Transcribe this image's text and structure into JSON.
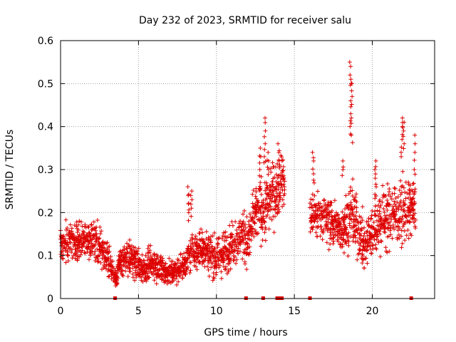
{
  "chart_data": {
    "type": "scatter",
    "title": "Day 232 of 2023, SRMTID for receiver salu",
    "xlabel": "GPS time / hours",
    "ylabel": "SRMTID / TECUs",
    "xlim": [
      0,
      24
    ],
    "ylim": [
      0,
      0.6
    ],
    "x_ticks": [
      "0",
      "5",
      "10",
      "15",
      "20"
    ],
    "y_ticks": [
      "0",
      "0.1",
      "0.2",
      "0.3",
      "0.4",
      "0.5",
      "0.6"
    ],
    "grid": true,
    "marker": "+",
    "series_color": "#dd0000",
    "trend": [
      {
        "x": 0.0,
        "y": 0.13,
        "s": 0.03
      },
      {
        "x": 1.0,
        "y": 0.13,
        "s": 0.03
      },
      {
        "x": 2.0,
        "y": 0.14,
        "s": 0.03
      },
      {
        "x": 2.8,
        "y": 0.11,
        "s": 0.03
      },
      {
        "x": 3.4,
        "y": 0.06,
        "s": 0.015
      },
      {
        "x": 3.6,
        "y": 0.04,
        "s": 0.01
      },
      {
        "x": 3.7,
        "y": 0.08,
        "s": 0.02
      },
      {
        "x": 4.5,
        "y": 0.1,
        "s": 0.03
      },
      {
        "x": 5.2,
        "y": 0.07,
        "s": 0.025
      },
      {
        "x": 6.0,
        "y": 0.08,
        "s": 0.025
      },
      {
        "x": 7.0,
        "y": 0.06,
        "s": 0.02
      },
      {
        "x": 7.8,
        "y": 0.07,
        "s": 0.02
      },
      {
        "x": 8.5,
        "y": 0.11,
        "s": 0.03
      },
      {
        "x": 9.3,
        "y": 0.12,
        "s": 0.03
      },
      {
        "x": 10.0,
        "y": 0.09,
        "s": 0.03
      },
      {
        "x": 10.8,
        "y": 0.12,
        "s": 0.035
      },
      {
        "x": 11.8,
        "y": 0.15,
        "s": 0.04
      },
      {
        "x": 12.0,
        "y": 0.13,
        "s": 0.04
      },
      {
        "x": 12.5,
        "y": 0.2,
        "s": 0.04
      },
      {
        "x": 13.0,
        "y": 0.21,
        "s": 0.05
      },
      {
        "x": 13.6,
        "y": 0.24,
        "s": 0.05
      },
      {
        "x": 14.3,
        "y": 0.28,
        "s": 0.04
      },
      {
        "x": 14.4,
        "y": 0.24,
        "s": 0.04
      }
    ],
    "trend_2": [
      {
        "x": 16.0,
        "y": 0.19,
        "s": 0.04
      },
      {
        "x": 17.0,
        "y": 0.19,
        "s": 0.04
      },
      {
        "x": 18.0,
        "y": 0.16,
        "s": 0.04
      },
      {
        "x": 18.7,
        "y": 0.2,
        "s": 0.05
      },
      {
        "x": 19.5,
        "y": 0.12,
        "s": 0.04
      },
      {
        "x": 20.3,
        "y": 0.18,
        "s": 0.05
      },
      {
        "x": 21.0,
        "y": 0.19,
        "s": 0.05
      },
      {
        "x": 22.0,
        "y": 0.2,
        "s": 0.05
      },
      {
        "x": 22.8,
        "y": 0.22,
        "s": 0.04
      }
    ],
    "spikes": [
      {
        "x": 8.2,
        "ys": [
          0.2,
          0.22,
          0.24,
          0.26
        ]
      },
      {
        "x": 8.4,
        "ys": [
          0.21,
          0.23,
          0.25
        ]
      },
      {
        "x": 12.8,
        "ys": [
          0.27,
          0.3,
          0.33,
          0.35
        ]
      },
      {
        "x": 13.1,
        "ys": [
          0.33,
          0.36,
          0.39,
          0.42
        ]
      },
      {
        "x": 13.3,
        "ys": [
          0.3,
          0.32,
          0.34
        ]
      },
      {
        "x": 14.0,
        "ys": [
          0.32,
          0.34,
          0.36
        ]
      },
      {
        "x": 16.2,
        "ys": [
          0.29,
          0.32,
          0.34
        ]
      },
      {
        "x": 18.1,
        "ys": [
          0.3,
          0.32
        ]
      },
      {
        "x": 18.6,
        "ys": [
          0.4,
          0.43,
          0.46,
          0.51,
          0.52,
          0.55
        ]
      },
      {
        "x": 18.7,
        "ys": [
          0.38,
          0.42,
          0.47,
          0.5
        ]
      },
      {
        "x": 20.2,
        "ys": [
          0.26,
          0.28,
          0.3,
          0.32
        ]
      },
      {
        "x": 21.9,
        "ys": [
          0.34,
          0.37,
          0.4,
          0.42
        ]
      },
      {
        "x": 22.0,
        "ys": [
          0.36,
          0.39,
          0.41
        ]
      },
      {
        "x": 22.7,
        "ys": [
          0.3,
          0.34,
          0.38
        ]
      }
    ],
    "baseline_markers_x": [
      3.5,
      11.9,
      13.0,
      13.9,
      14.0,
      14.2,
      16.0,
      22.5
    ]
  }
}
